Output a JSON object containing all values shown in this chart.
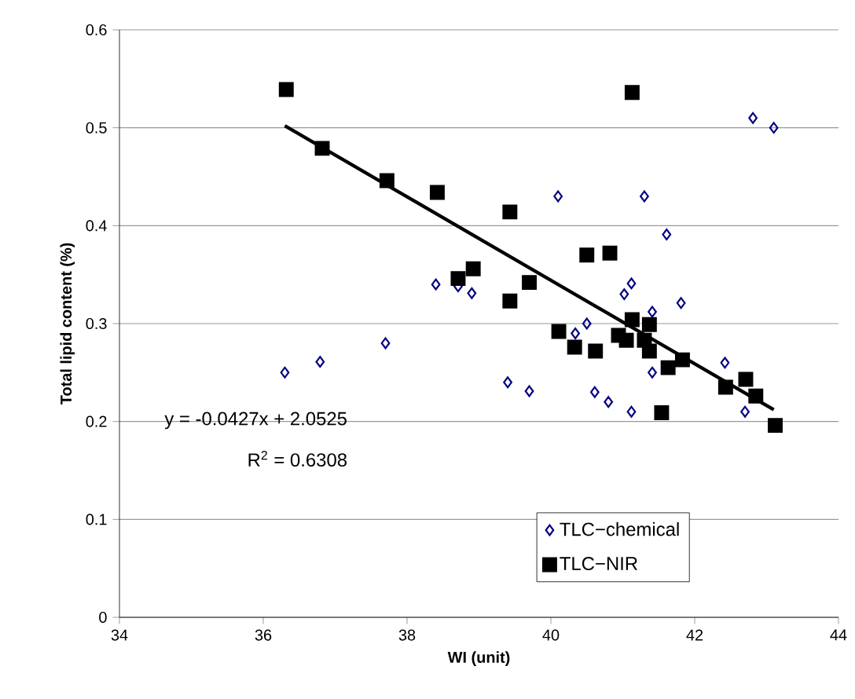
{
  "chart_data": {
    "type": "scatter",
    "xlabel": "WI (unit)",
    "ylabel": "Total lipid content (%)",
    "xlim": [
      34,
      44
    ],
    "ylim": [
      0,
      0.6
    ],
    "xticks": [
      34,
      36,
      38,
      40,
      42,
      44
    ],
    "yticks": [
      0,
      0.1,
      0.2,
      0.3,
      0.4,
      0.5,
      0.6
    ],
    "grid": "y",
    "legend": "bottom right",
    "annotations": [
      "y = -0.0427x + 2.0525",
      "R$^{2}$ = 0.6308"
    ],
    "series": [
      {
        "name": "TLC−chemical",
        "color": "#000080",
        "marker": "diamond",
        "x": [
          38.4,
          38.71,
          38.9,
          37.7,
          36.79,
          36.3,
          39.4,
          39.7,
          42.81,
          43.1,
          40.1,
          41.3,
          41.61,
          41.12,
          41.02,
          41.81,
          41.41,
          40.5,
          40.34,
          41.41,
          42.42,
          40.61,
          40.8,
          41.12,
          42.7
        ],
        "values": [
          0.34,
          0.338,
          0.331,
          0.28,
          0.261,
          0.25,
          0.24,
          0.231,
          0.51,
          0.5,
          0.43,
          0.43,
          0.391,
          0.341,
          0.33,
          0.321,
          0.312,
          0.3,
          0.29,
          0.25,
          0.26,
          0.23,
          0.22,
          0.21,
          0.21
        ]
      },
      {
        "name": "TLC−NIR",
        "color": "#000000",
        "marker": "square",
        "x": [
          36.32,
          36.82,
          37.72,
          38.42,
          39.43,
          38.92,
          38.71,
          39.43,
          39.7,
          41.13,
          40.5,
          40.82,
          40.11,
          40.33,
          40.62,
          41.13,
          40.94,
          41.05,
          41.37,
          41.3,
          41.37,
          41.63,
          41.83,
          41.54,
          42.43,
          42.71,
          42.85,
          43.12
        ],
        "values": [
          0.539,
          0.479,
          0.446,
          0.434,
          0.414,
          0.356,
          0.346,
          0.323,
          0.342,
          0.536,
          0.37,
          0.372,
          0.292,
          0.276,
          0.272,
          0.304,
          0.288,
          0.283,
          0.299,
          0.283,
          0.272,
          0.255,
          0.263,
          0.209,
          0.235,
          0.243,
          0.226,
          0.196
        ]
      },
      {
        "type": "line",
        "color": "#000000",
        "marker": "none",
        "x": [
          36.3,
          43.1
        ],
        "values": [
          0.502,
          0.212
        ]
      }
    ]
  }
}
